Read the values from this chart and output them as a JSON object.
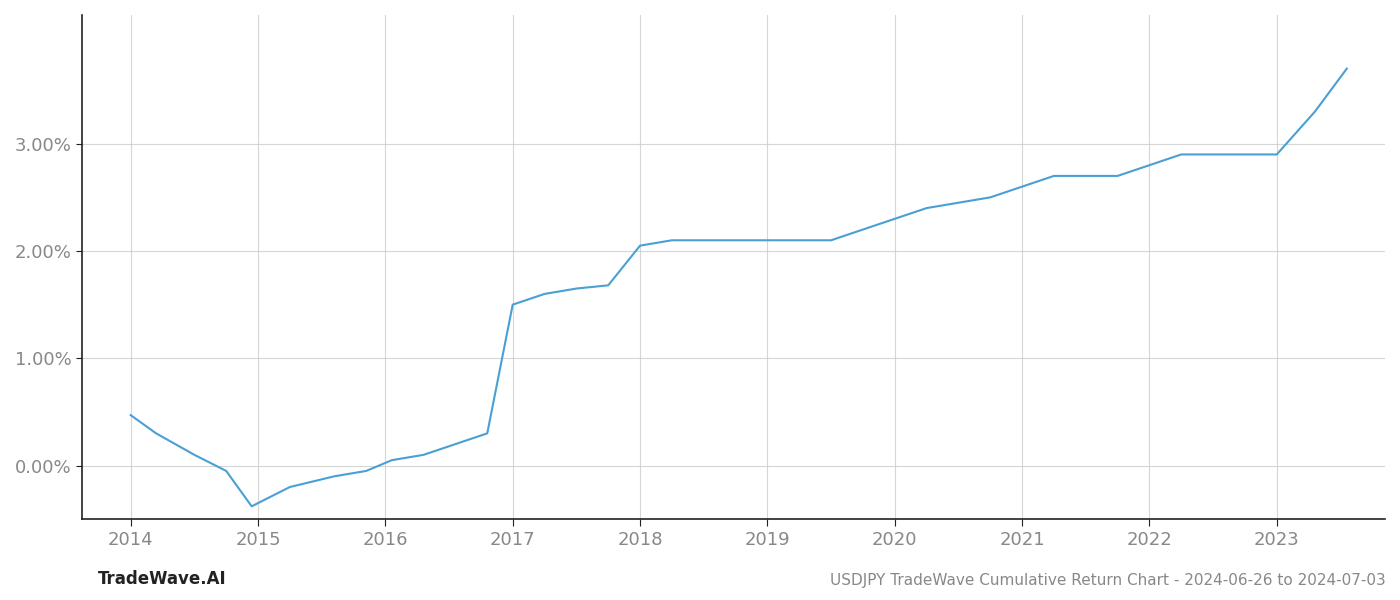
{
  "title": "USDJPY TradeWave Cumulative Return Chart - 2024-06-26 to 2024-07-03",
  "watermark": "TradeWave.AI",
  "line_color": "#4a9fd4",
  "background_color": "#ffffff",
  "grid_color": "#cccccc",
  "x_years": [
    2014,
    2015,
    2016,
    2017,
    2018,
    2019,
    2020,
    2021,
    2022,
    2023
  ],
  "x_values": [
    2014.0,
    2014.2,
    2014.5,
    2014.75,
    2014.95,
    2015.25,
    2015.6,
    2015.85,
    2016.05,
    2016.3,
    2016.55,
    2016.8,
    2017.0,
    2017.25,
    2017.5,
    2017.75,
    2018.0,
    2018.25,
    2018.5,
    2018.75,
    2019.0,
    2019.25,
    2019.5,
    2019.75,
    2020.0,
    2020.25,
    2020.5,
    2020.75,
    2021.0,
    2021.25,
    2021.5,
    2021.75,
    2022.0,
    2022.25,
    2022.5,
    2022.75,
    2023.0,
    2023.3,
    2023.55
  ],
  "y_values": [
    0.0047,
    0.003,
    0.001,
    -0.0005,
    -0.0038,
    -0.002,
    -0.001,
    -0.0005,
    0.0005,
    0.001,
    0.002,
    0.003,
    0.015,
    0.016,
    0.0165,
    0.0168,
    0.0205,
    0.021,
    0.021,
    0.021,
    0.021,
    0.021,
    0.021,
    0.022,
    0.023,
    0.024,
    0.0245,
    0.025,
    0.026,
    0.027,
    0.027,
    0.027,
    0.028,
    0.029,
    0.029,
    0.029,
    0.029,
    0.033,
    0.037
  ],
  "xlim": [
    2013.62,
    2023.85
  ],
  "ylim": [
    -0.005,
    0.042
  ],
  "yticks": [
    0.0,
    0.01,
    0.02,
    0.03
  ],
  "ytick_labels": [
    "0.00%",
    "1.00%",
    "2.00%",
    "3.00%"
  ],
  "line_width": 1.5,
  "title_fontsize": 11,
  "tick_fontsize": 13,
  "watermark_fontsize": 12,
  "spine_color": "#222222",
  "tick_color": "#888888"
}
